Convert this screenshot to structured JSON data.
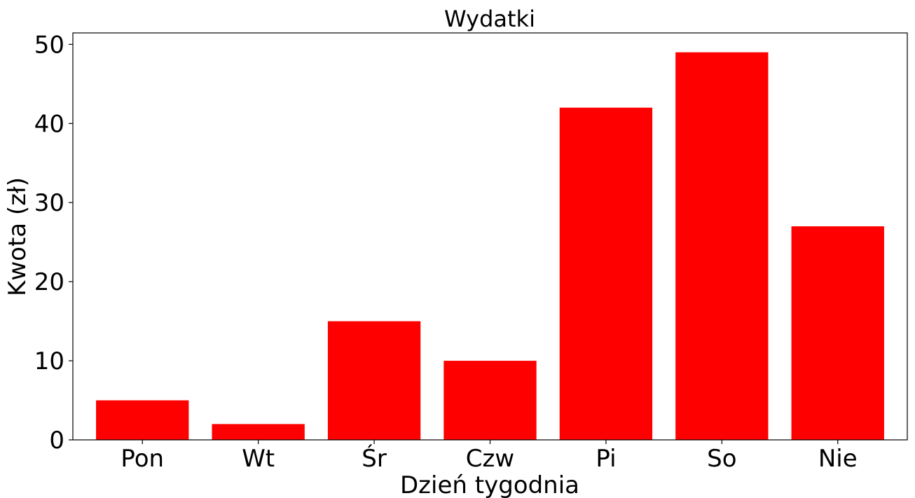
{
  "chart_data": {
    "type": "bar",
    "title": "Wydatki",
    "xlabel": "Dzień tygodnia",
    "ylabel": "Kwota (zł)",
    "categories": [
      "Pon",
      "Wt",
      "Śr",
      "Czw",
      "Pi",
      "So",
      "Nie"
    ],
    "values": [
      5,
      2,
      15,
      10,
      42,
      49,
      27
    ],
    "ylim": [
      0,
      51.45
    ],
    "yticks": [
      0,
      10,
      20,
      30,
      40,
      50
    ],
    "bar_color": "#ff0000",
    "grid": false,
    "legend": false
  }
}
